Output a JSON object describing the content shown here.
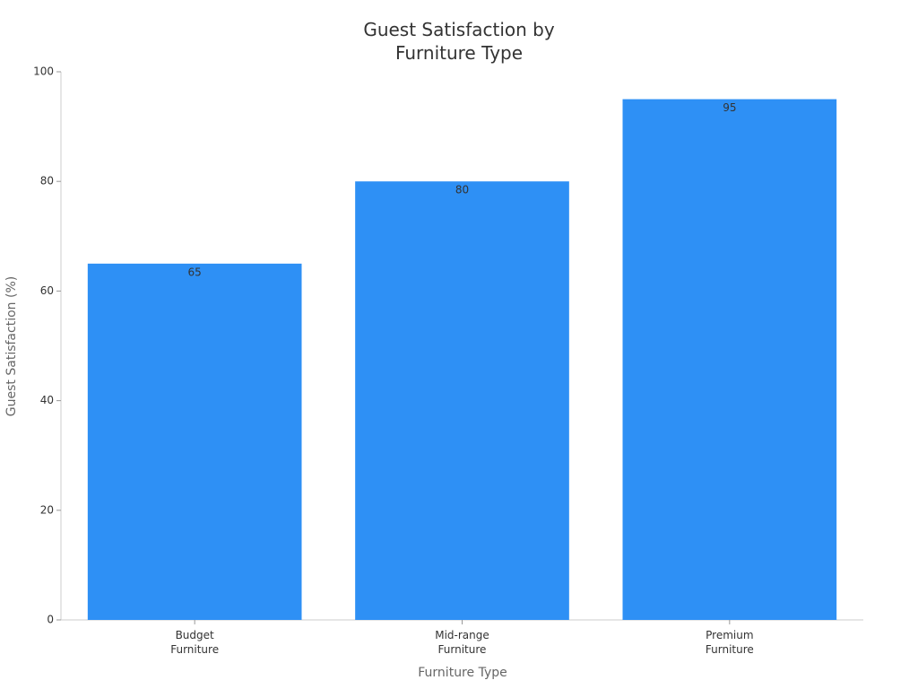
{
  "chart_data": {
    "type": "bar",
    "title": "Guest Satisfaction by\nFurniture Type",
    "x_label": "Furniture Type",
    "y_label": "Guest Satisfaction (%)",
    "categories": [
      "Budget\nFurniture",
      "Mid-range\nFurniture",
      "Premium\nFurniture"
    ],
    "values": [
      65,
      80,
      95
    ],
    "color": "#2e90f5",
    "ylim": [
      0,
      100
    ],
    "yticks": [
      0,
      20,
      40,
      60,
      80,
      100
    ],
    "grid": false
  }
}
